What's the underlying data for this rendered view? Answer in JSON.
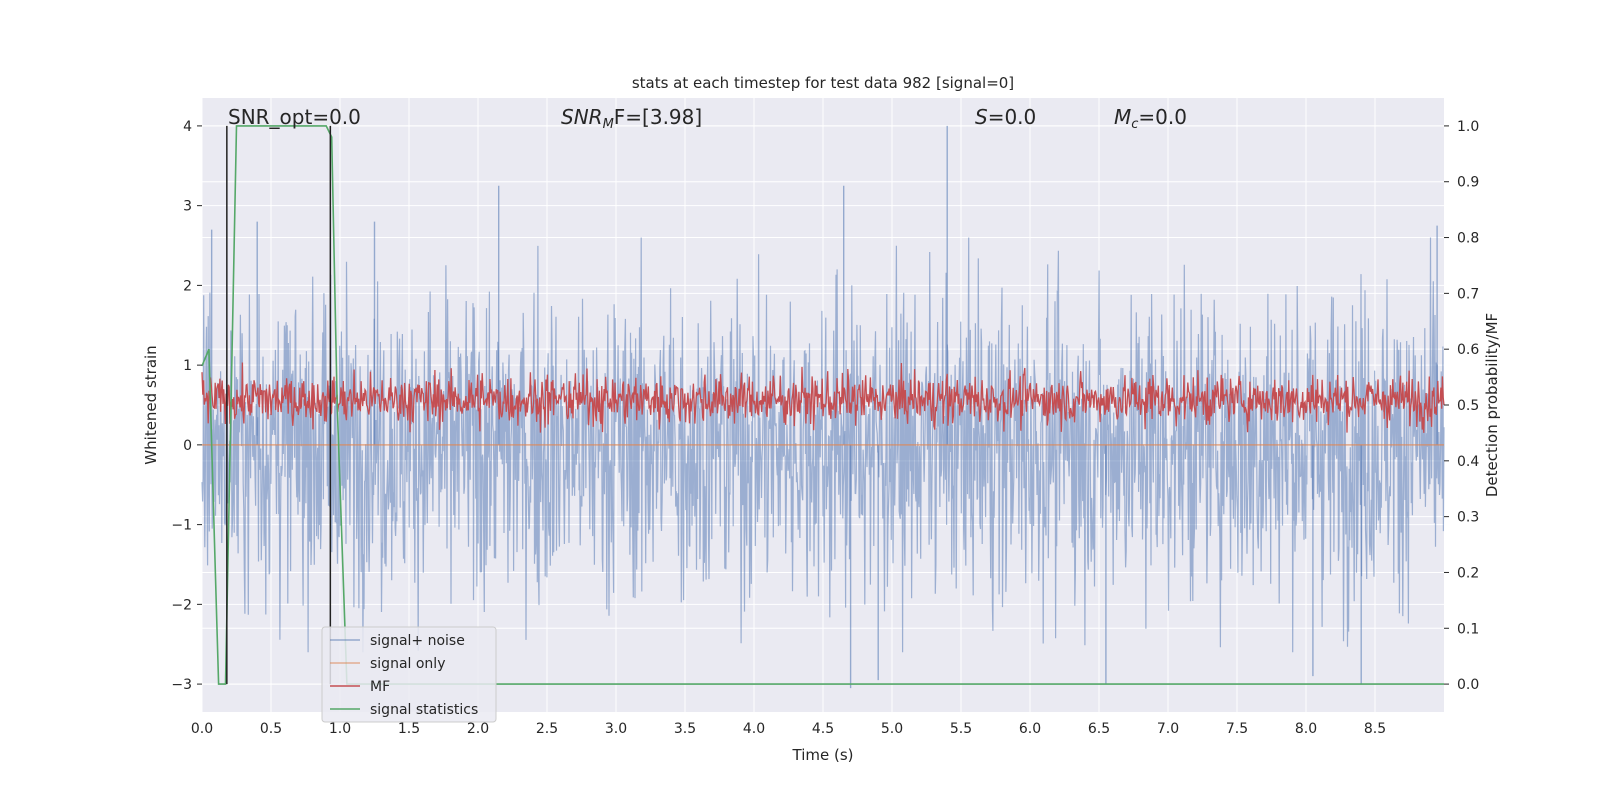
{
  "chart_data": {
    "type": "line",
    "title": "stats at each timestep for test data 982 [signal=0]",
    "xlabel": "Time (s)",
    "ylabel_left": "Whitened strain",
    "ylabel_right": "Detection probability/MF",
    "xlim": [
      0.0,
      9.0
    ],
    "ylim_left": [
      -3.35,
      4.35
    ],
    "ylim_right": [
      -0.05,
      1.05
    ],
    "x_ticks": [
      "0.0",
      "0.5",
      "1.0",
      "1.5",
      "2.0",
      "2.5",
      "3.0",
      "3.5",
      "4.0",
      "4.5",
      "5.0",
      "5.5",
      "6.0",
      "6.5",
      "7.0",
      "7.5",
      "8.0",
      "8.5"
    ],
    "y_left_ticks": [
      "4",
      "3",
      "2",
      "1",
      "0",
      "−1",
      "−2",
      "−3"
    ],
    "y_right_ticks": [
      "1.0",
      "0.9",
      "0.8",
      "0.7",
      "0.6",
      "0.5",
      "0.4",
      "0.3",
      "0.2",
      "0.1",
      "0.0"
    ],
    "grid": true,
    "annotations": {
      "snr_opt": "SNR_opt=0.0",
      "snr_mf_sym": "SNR",
      "snr_mf_sub": "M",
      "snr_mf_rest": "F=[3.98]",
      "s_sym": "S",
      "s_rest": "=0.0",
      "mc_sym": "M",
      "mc_sub": "c",
      "mc_rest": "=0.0"
    },
    "series": [
      {
        "name": "signal+ noise",
        "color": "#4c72b0",
        "axis": "left",
        "description_range": [
          -3.05,
          4.0
        ],
        "peaks": [
          {
            "x": 0.07,
            "y": 2.7
          },
          {
            "x": 0.4,
            "y": 2.8
          },
          {
            "x": 1.25,
            "y": 2.8
          },
          {
            "x": 2.15,
            "y": 3.25
          },
          {
            "x": 4.65,
            "y": 3.25
          },
          {
            "x": 5.4,
            "y": 4.0
          },
          {
            "x": 8.95,
            "y": 2.75
          }
        ],
        "troughs": [
          {
            "x": 4.7,
            "y": -3.05
          },
          {
            "x": 4.9,
            "y": -2.95
          },
          {
            "x": 6.55,
            "y": -3.0
          },
          {
            "x": 8.05,
            "y": -2.9
          },
          {
            "x": 8.4,
            "y": -3.0
          }
        ]
      },
      {
        "name": "signal only",
        "color": "#dd8452",
        "axis": "left",
        "x": [
          0.0,
          9.0
        ],
        "y": [
          0.0,
          0.0
        ]
      },
      {
        "name": "MF",
        "color": "#c44e52",
        "axis": "right",
        "description_range": [
          0.45,
          0.58
        ]
      },
      {
        "name": "signal statistics",
        "color": "#55a868",
        "axis": "right",
        "x": [
          0.0,
          0.05,
          0.12,
          0.17,
          0.25,
          0.85,
          0.9,
          0.94,
          0.98,
          1.05,
          9.0
        ],
        "y": [
          0.57,
          0.6,
          0.0,
          0.0,
          1.0,
          1.0,
          1.0,
          0.98,
          0.5,
          0.0,
          0.0
        ]
      }
    ],
    "vlines": [
      {
        "x": 0.18,
        "color": "#222222"
      },
      {
        "x": 0.93,
        "color": "#222222"
      }
    ],
    "legend": {
      "position": "lower-left",
      "entries": [
        "signal+ noise",
        "signal only",
        "MF",
        "signal statistics"
      ]
    }
  }
}
